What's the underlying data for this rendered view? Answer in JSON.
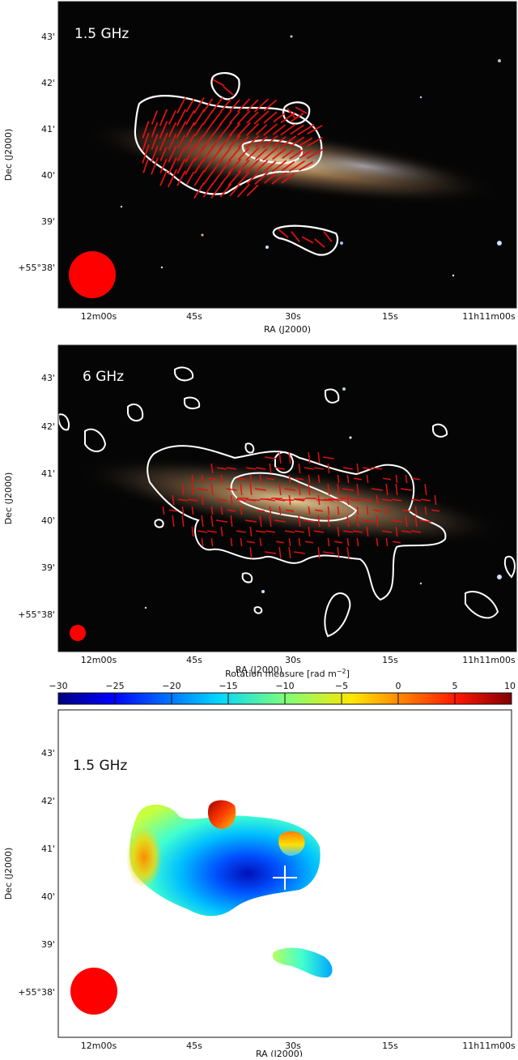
{
  "panels": [
    {
      "label": "1.5 GHz",
      "ylabel": "Dec (J2000)",
      "xlabel": "RA (J2000)",
      "yticks": [
        "43'",
        "42'",
        "41'",
        "40'",
        "39'",
        "+55°38'"
      ],
      "xticks": [
        "12m00s",
        "45s",
        "30s",
        "15s",
        "11h11m00s"
      ]
    },
    {
      "label": "6 GHz",
      "ylabel": "Dec (J2000)",
      "xlabel": "RA (J2000)",
      "yticks": [
        "43'",
        "42'",
        "41'",
        "40'",
        "39'",
        "+55°38'"
      ],
      "xticks": [
        "12m00s",
        "45s",
        "30s",
        "15s",
        "11h11m00s"
      ]
    },
    {
      "label": "1.5 GHz",
      "ylabel": "Dec (J2000)",
      "xlabel": "RA (J2000)",
      "yticks": [
        "43'",
        "42'",
        "41'",
        "40'",
        "39'",
        "+55°38'"
      ],
      "xticks": [
        "12m00s",
        "45s",
        "30s",
        "15s",
        "11h11m00s"
      ]
    }
  ],
  "colorbar": {
    "label": "Rotation measure [rad m",
    "label_exp": "−2",
    "label_close": "]",
    "ticks": [
      "−30",
      "−25",
      "−20",
      "−15",
      "−10",
      "−5",
      "0",
      "5",
      "10"
    ],
    "range": [
      -30,
      10
    ]
  },
  "colors": {
    "contour": "#ffffff",
    "vectors": "#e01010",
    "beam": "#ff0000",
    "sky": "#050505"
  }
}
